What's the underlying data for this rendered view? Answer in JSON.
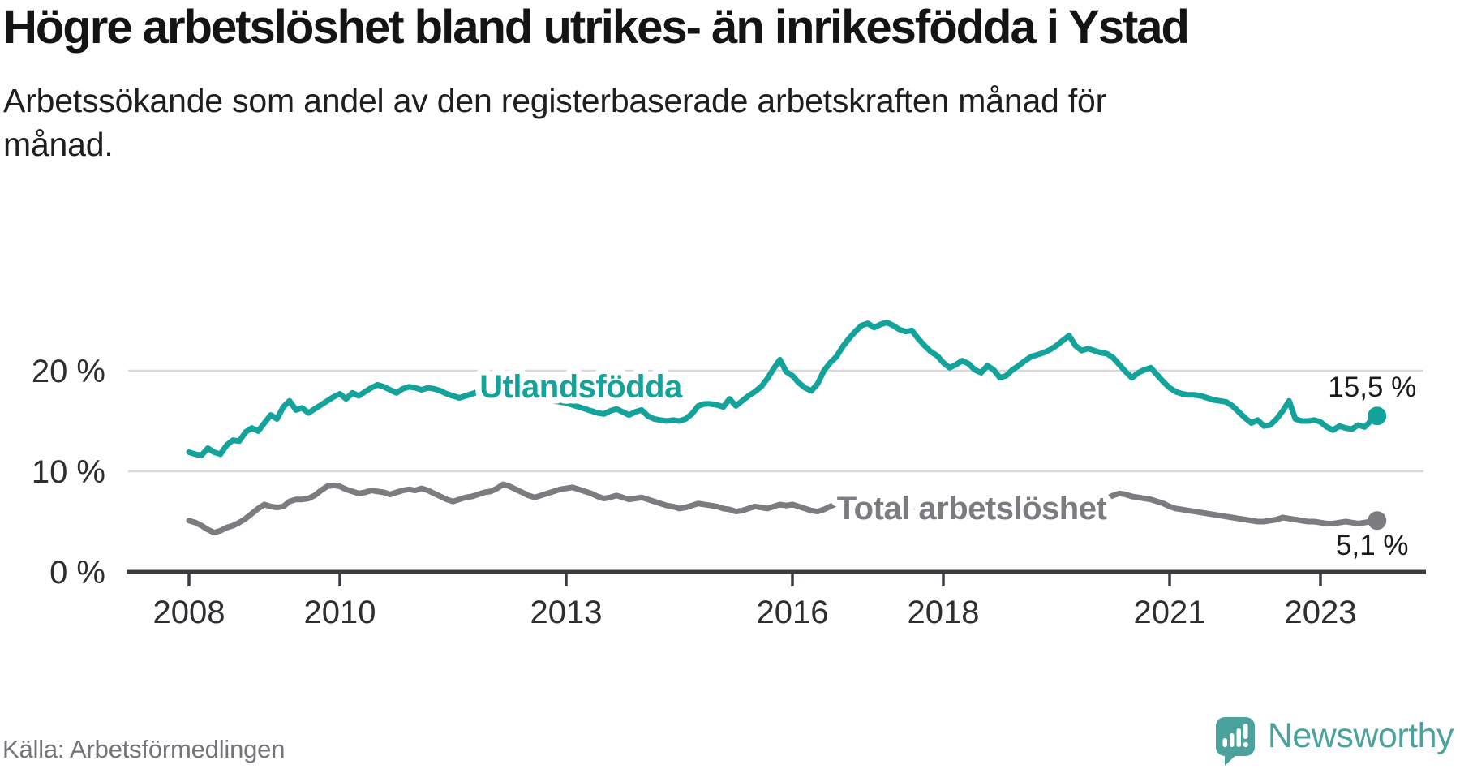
{
  "header": {
    "title": "Högre arbetslöshet bland utrikes- än inrikesfödda i Ystad",
    "subtitle": "Arbetssökande som andel av den registerbaserade arbetskraften månad för månad."
  },
  "footer": {
    "source": "Källa: Arbetsförmedlingen",
    "brand": "Newsworthy",
    "brand_icon": "speech-bubble-bar-chart-exclamation",
    "brand_color": "#4ba29c"
  },
  "colors": {
    "background": "#ffffff",
    "gridline": "#d9d9d9",
    "axis": "#3c3c40",
    "tick_text": "#2e2e32",
    "end_label_text": "#1a1a1a"
  },
  "chart_data": {
    "type": "line",
    "title": "Högre arbetslöshet bland utrikes- än inrikesfödda i Ystad",
    "subtitle": "Arbetssökande som andel av den registerbaserade arbetskraften månad för månad.",
    "source": "Källa: Arbetsförmedlingen",
    "x_unit": "months",
    "x_start_year": 2008,
    "x_ticks": [
      2008,
      2010,
      2013,
      2016,
      2018,
      2021,
      2023
    ],
    "y_ticks": [
      {
        "value": 0,
        "label": "0 %"
      },
      {
        "value": 10,
        "label": "10 %"
      },
      {
        "value": 20,
        "label": "20 %"
      }
    ],
    "ylim": [
      0,
      26
    ],
    "grid": "horizontal",
    "legend_position": "inline-labels",
    "series": [
      {
        "name": "Utlandsfödda",
        "color": "#14a39a",
        "end_label": "15,5 %",
        "last_value": 15.5,
        "values": [
          11.9,
          11.7,
          11.6,
          12.3,
          11.9,
          11.7,
          12.6,
          13.1,
          13.0,
          13.9,
          14.3,
          14.0,
          14.8,
          15.6,
          15.2,
          16.4,
          17.0,
          16.1,
          16.3,
          15.8,
          16.2,
          16.6,
          17.0,
          17.4,
          17.7,
          17.2,
          17.8,
          17.5,
          17.9,
          18.3,
          18.6,
          18.4,
          18.1,
          17.8,
          18.2,
          18.4,
          18.3,
          18.1,
          18.3,
          18.2,
          18.0,
          17.7,
          17.5,
          17.3,
          17.5,
          17.7,
          17.9,
          18.1,
          18.2,
          18.5,
          18.7,
          18.5,
          18.2,
          18.0,
          17.8,
          17.6,
          17.4,
          17.2,
          17.0,
          16.9,
          16.8,
          16.6,
          16.4,
          16.2,
          16.0,
          15.8,
          15.7,
          16.0,
          16.2,
          15.9,
          15.6,
          15.9,
          16.1,
          15.5,
          15.2,
          15.1,
          15.0,
          15.1,
          15.0,
          15.2,
          15.7,
          16.5,
          16.7,
          16.7,
          16.6,
          16.4,
          17.2,
          16.5,
          17.0,
          17.5,
          17.9,
          18.4,
          19.2,
          20.2,
          21.1,
          19.9,
          19.5,
          18.8,
          18.3,
          18.0,
          18.7,
          20.0,
          20.8,
          21.4,
          22.4,
          23.2,
          23.9,
          24.5,
          24.7,
          24.3,
          24.6,
          24.8,
          24.5,
          24.1,
          23.9,
          24.0,
          23.2,
          22.5,
          21.9,
          21.5,
          20.8,
          20.3,
          20.6,
          21.0,
          20.7,
          20.1,
          19.8,
          20.5,
          20.1,
          19.3,
          19.5,
          20.1,
          20.5,
          21.0,
          21.4,
          21.6,
          21.8,
          22.1,
          22.5,
          23.0,
          23.5,
          22.5,
          22.0,
          22.2,
          22.0,
          21.8,
          21.7,
          21.3,
          20.6,
          19.9,
          19.3,
          19.8,
          20.1,
          20.3,
          19.6,
          18.9,
          18.3,
          17.9,
          17.7,
          17.6,
          17.6,
          17.5,
          17.3,
          17.1,
          17.0,
          16.9,
          16.5,
          15.9,
          15.3,
          14.8,
          15.1,
          14.5,
          14.6,
          15.2,
          16.0,
          17.0,
          15.2,
          15.0,
          15.0,
          15.1,
          14.9,
          14.4,
          14.1,
          14.5,
          14.3,
          14.2,
          14.6,
          14.4,
          15.0,
          15.5
        ]
      },
      {
        "name": "Total arbetslöshet",
        "color": "#7c7c80",
        "end_label": "5,1 %",
        "last_value": 5.1,
        "values": [
          5.1,
          4.9,
          4.6,
          4.2,
          3.9,
          4.1,
          4.4,
          4.6,
          4.9,
          5.3,
          5.8,
          6.3,
          6.7,
          6.5,
          6.4,
          6.5,
          7.0,
          7.2,
          7.2,
          7.3,
          7.6,
          8.1,
          8.5,
          8.6,
          8.5,
          8.2,
          8.0,
          7.8,
          7.9,
          8.1,
          8.0,
          7.9,
          7.7,
          7.9,
          8.1,
          8.2,
          8.1,
          8.3,
          8.1,
          7.8,
          7.5,
          7.2,
          7.0,
          7.2,
          7.4,
          7.5,
          7.7,
          7.9,
          8.0,
          8.3,
          8.7,
          8.5,
          8.2,
          7.9,
          7.6,
          7.4,
          7.6,
          7.8,
          8.0,
          8.2,
          8.3,
          8.4,
          8.2,
          8.0,
          7.8,
          7.5,
          7.3,
          7.4,
          7.6,
          7.4,
          7.2,
          7.3,
          7.4,
          7.2,
          7.0,
          6.8,
          6.6,
          6.5,
          6.3,
          6.4,
          6.6,
          6.8,
          6.7,
          6.6,
          6.5,
          6.3,
          6.2,
          6.0,
          6.1,
          6.3,
          6.5,
          6.4,
          6.3,
          6.5,
          6.7,
          6.6,
          6.7,
          6.5,
          6.3,
          6.1,
          6.0,
          6.2,
          6.5,
          6.8,
          6.9,
          6.7,
          6.5,
          6.4,
          6.3,
          6.4,
          6.6,
          6.8,
          6.7,
          6.5,
          6.3,
          6.2,
          6.4,
          6.6,
          6.8,
          6.9,
          6.8,
          6.6,
          6.4,
          6.3,
          6.1,
          6.0,
          5.9,
          6.1,
          6.3,
          6.2,
          6.1,
          6.2,
          6.3,
          6.5,
          6.6,
          6.5,
          6.4,
          6.6,
          6.8,
          7.0,
          7.2,
          7.0,
          6.8,
          6.9,
          7.0,
          7.1,
          7.3,
          7.6,
          7.8,
          7.7,
          7.5,
          7.4,
          7.3,
          7.2,
          7.0,
          6.8,
          6.5,
          6.3,
          6.2,
          6.1,
          6.0,
          5.9,
          5.8,
          5.7,
          5.6,
          5.5,
          5.4,
          5.3,
          5.2,
          5.1,
          5.0,
          5.0,
          5.1,
          5.2,
          5.4,
          5.3,
          5.2,
          5.1,
          5.0,
          5.0,
          4.9,
          4.8,
          4.8,
          4.9,
          5.0,
          4.9,
          4.8,
          4.9,
          5.0,
          5.1
        ]
      }
    ]
  }
}
